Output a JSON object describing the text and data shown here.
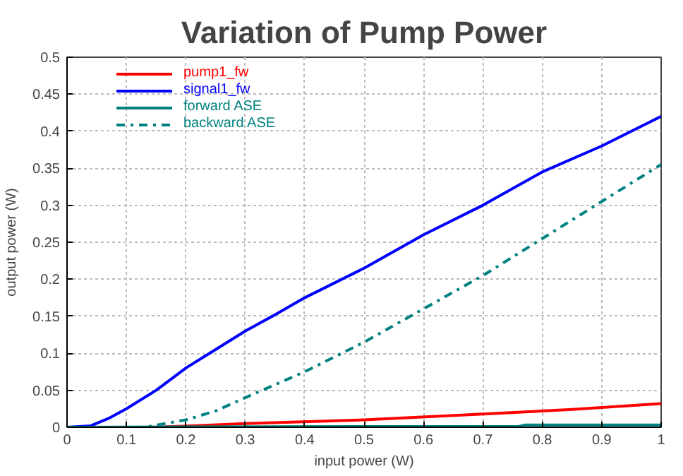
{
  "chart_data": {
    "type": "line",
    "title": "Variation of Pump Power",
    "xlabel": "input power (W)",
    "ylabel": "output power (W)",
    "xlim": [
      0,
      1
    ],
    "ylim": [
      0,
      0.5
    ],
    "xticks": [
      0,
      0.1,
      0.2,
      0.3,
      0.4,
      0.5,
      0.6,
      0.7,
      0.8,
      0.9,
      1
    ],
    "yticks": [
      0,
      0.05,
      0.1,
      0.15,
      0.2,
      0.25,
      0.3,
      0.35,
      0.4,
      0.45,
      0.5
    ],
    "grid": true,
    "legend": "top left",
    "marker": "none",
    "series": [
      {
        "name": "pump1_fw",
        "color": "#ff0000",
        "line_style": "solid",
        "x": [
          0,
          0.15,
          0.3,
          0.5,
          0.7,
          0.85,
          1
        ],
        "values": [
          0,
          0,
          0.005,
          0.01,
          0.018,
          0.024,
          0.032
        ]
      },
      {
        "name": "signal1_fw",
        "color": "#0000ff",
        "line_style": "solid",
        "x": [
          0,
          0.04,
          0.07,
          0.1,
          0.15,
          0.2,
          0.25,
          0.3,
          0.35,
          0.4,
          0.5,
          0.6,
          0.7,
          0.8,
          0.9,
          1
        ],
        "values": [
          0,
          0.002,
          0.012,
          0.025,
          0.05,
          0.08,
          0.105,
          0.13,
          0.152,
          0.175,
          0.215,
          0.26,
          0.3,
          0.345,
          0.38,
          0.42
        ]
      },
      {
        "name": "forward ASE",
        "color": "#008080",
        "line_style": "solid",
        "x": [
          0,
          0.5,
          0.76,
          0.77,
          1
        ],
        "values": [
          0,
          0.001,
          0.001,
          0.003,
          0.003
        ]
      },
      {
        "name": "backward ASE",
        "color": "#008080",
        "line_style": "dashdot",
        "x": [
          0,
          0.13,
          0.2,
          0.25,
          0.3,
          0.4,
          0.5,
          0.6,
          0.7,
          0.8,
          0.9,
          1
        ],
        "values": [
          0,
          0,
          0.01,
          0.022,
          0.04,
          0.075,
          0.115,
          0.16,
          0.205,
          0.255,
          0.305,
          0.355
        ]
      }
    ]
  }
}
